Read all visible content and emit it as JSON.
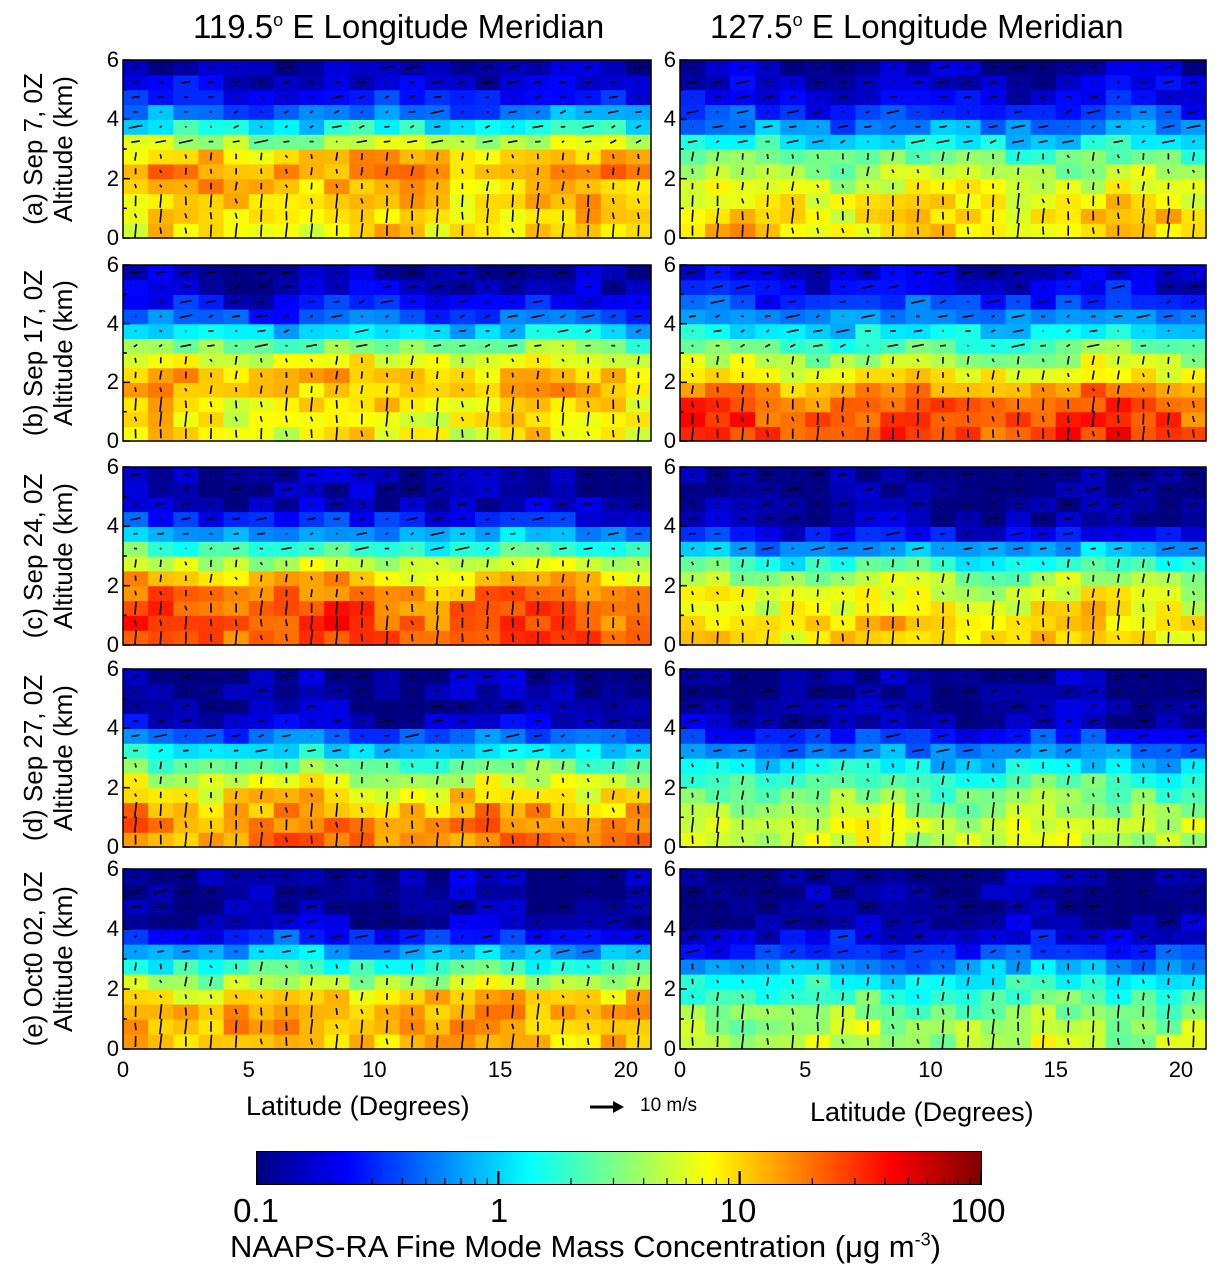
{
  "chart_data": {
    "type": "heatmap",
    "columns": [
      {
        "title_main": "119.5",
        "title_sup": "o",
        "title_rest": " E Longitude Meridian",
        "longitude": 119.5
      },
      {
        "title_main": "127.5",
        "title_sup": "o",
        "title_rest": " E Longitude Meridian",
        "longitude": 127.5
      }
    ],
    "rows": [
      {
        "label_line1": "(a) Sep 7, 0Z",
        "label_line2": "Altitude (km)"
      },
      {
        "label_line1": "(b) Sep 17, 0Z",
        "label_line2": "Altitude (km)"
      },
      {
        "label_line1": "(c) Sep 24, 0Z",
        "label_line2": "Altitude (km)"
      },
      {
        "label_line1": "(d) Sep 27, 0Z",
        "label_line2": "Altitude (km)"
      },
      {
        "label_line1": "(e) Oct0 02, 0Z",
        "label_line2": "Altitude (km)"
      }
    ],
    "x_axis": {
      "label": "Latitude (Degrees)",
      "range": [
        0,
        21
      ],
      "ticks": [
        "0",
        "5",
        "10",
        "15",
        "20"
      ]
    },
    "y_axis": {
      "range": [
        0,
        6
      ],
      "ticks": [
        "0",
        "2",
        "4",
        "6"
      ]
    },
    "reference_vector": {
      "label": "10 m/s",
      "magnitude": 10
    },
    "colorbar": {
      "scale": "log",
      "range": [
        0.1,
        100
      ],
      "ticks": [
        "0.1",
        "1",
        "10",
        "100"
      ],
      "title_main": "NAAPS-RA Fine Mode Mass Concentration (",
      "title_unit": "μg m",
      "title_sup": "-3",
      "title_close": ")",
      "colormap": [
        "#000080",
        "#0000ff",
        "#0080ff",
        "#00ffff",
        "#80ff80",
        "#ffff00",
        "#ff8000",
        "#ff0000",
        "#800000"
      ]
    },
    "grid": false,
    "approx_log10_concentration_fields": [
      [
        [
          [
            0,
            0.9
          ],
          [
            1.0,
            0.95
          ],
          [
            1.6,
            1.05
          ],
          [
            2.3,
            1.2
          ],
          [
            3.0,
            0.9
          ],
          [
            3.7,
            0.15
          ],
          [
            4.4,
            -0.4
          ],
          [
            5.0,
            -0.7
          ],
          [
            5.6,
            -0.9
          ],
          [
            6,
            -0.9
          ]
        ],
        [
          [
            0,
            0.85
          ],
          [
            1.0,
            0.9
          ],
          [
            1.6,
            1.0
          ],
          [
            2.3,
            1.05
          ],
          [
            3.0,
            0.7
          ],
          [
            3.7,
            0.05
          ],
          [
            4.4,
            -0.5
          ],
          [
            5.0,
            -0.75
          ],
          [
            5.6,
            -0.9
          ],
          [
            6,
            -0.9
          ]
        ],
        [
          [
            0,
            1.4
          ],
          [
            1.0,
            1.4
          ],
          [
            1.6,
            1.3
          ],
          [
            2.3,
            1.0
          ],
          [
            3.0,
            0.5
          ],
          [
            3.7,
            -0.1
          ],
          [
            4.4,
            -0.7
          ],
          [
            5.0,
            -0.9
          ],
          [
            5.6,
            -0.9
          ],
          [
            6,
            -0.9
          ]
        ],
        [
          [
            0,
            1.25
          ],
          [
            1.0,
            1.2
          ],
          [
            1.6,
            1.05
          ],
          [
            2.3,
            0.7
          ],
          [
            3.0,
            0.25
          ],
          [
            3.7,
            -0.3
          ],
          [
            4.4,
            -0.9
          ],
          [
            5.0,
            -0.9
          ],
          [
            5.6,
            -0.9
          ],
          [
            6,
            -0.9
          ]
        ],
        [
          [
            0,
            1.1
          ],
          [
            1.0,
            1.15
          ],
          [
            1.6,
            1.1
          ],
          [
            2.3,
            0.6
          ],
          [
            3.0,
            0.1
          ],
          [
            3.7,
            -0.5
          ],
          [
            4.4,
            -0.95
          ],
          [
            5.0,
            -0.95
          ],
          [
            5.6,
            -0.9
          ],
          [
            6,
            -0.9
          ]
        ]
      ],
      [
        [
          [
            0,
            1.0
          ],
          [
            1.0,
            0.95
          ],
          [
            1.6,
            0.8
          ],
          [
            2.3,
            0.6
          ],
          [
            3.0,
            0.3
          ],
          [
            3.7,
            -0.2
          ],
          [
            4.4,
            -0.55
          ],
          [
            5.0,
            -0.75
          ],
          [
            5.6,
            -0.85
          ],
          [
            6,
            -0.9
          ]
        ],
        [
          [
            0,
            1.45
          ],
          [
            1.0,
            1.4
          ],
          [
            1.6,
            1.25
          ],
          [
            2.3,
            0.9
          ],
          [
            3.0,
            0.55
          ],
          [
            3.7,
            0.1
          ],
          [
            4.4,
            -0.3
          ],
          [
            5.0,
            -0.6
          ],
          [
            5.6,
            -0.8
          ],
          [
            6,
            -0.85
          ]
        ],
        [
          [
            0,
            1.0
          ],
          [
            1.0,
            0.95
          ],
          [
            1.6,
            0.8
          ],
          [
            2.3,
            0.55
          ],
          [
            3.0,
            0.1
          ],
          [
            3.7,
            -0.6
          ],
          [
            4.4,
            -0.95
          ],
          [
            5.0,
            -0.95
          ],
          [
            5.6,
            -0.95
          ],
          [
            6,
            -0.95
          ]
        ],
        [
          [
            0,
            0.75
          ],
          [
            1.0,
            0.7
          ],
          [
            1.6,
            0.55
          ],
          [
            2.3,
            0.3
          ],
          [
            3.0,
            -0.1
          ],
          [
            3.7,
            -0.5
          ],
          [
            4.4,
            -0.95
          ],
          [
            5.0,
            -0.95
          ],
          [
            5.6,
            -0.95
          ],
          [
            6,
            -0.95
          ]
        ],
        [
          [
            0,
            0.7
          ],
          [
            1.0,
            0.6
          ],
          [
            1.6,
            0.4
          ],
          [
            2.3,
            0.1
          ],
          [
            3.0,
            -0.3
          ],
          [
            3.7,
            -0.7
          ],
          [
            4.4,
            -0.95
          ],
          [
            5.0,
            -0.95
          ],
          [
            5.6,
            -0.95
          ],
          [
            6,
            -0.95
          ]
        ]
      ]
    ]
  }
}
